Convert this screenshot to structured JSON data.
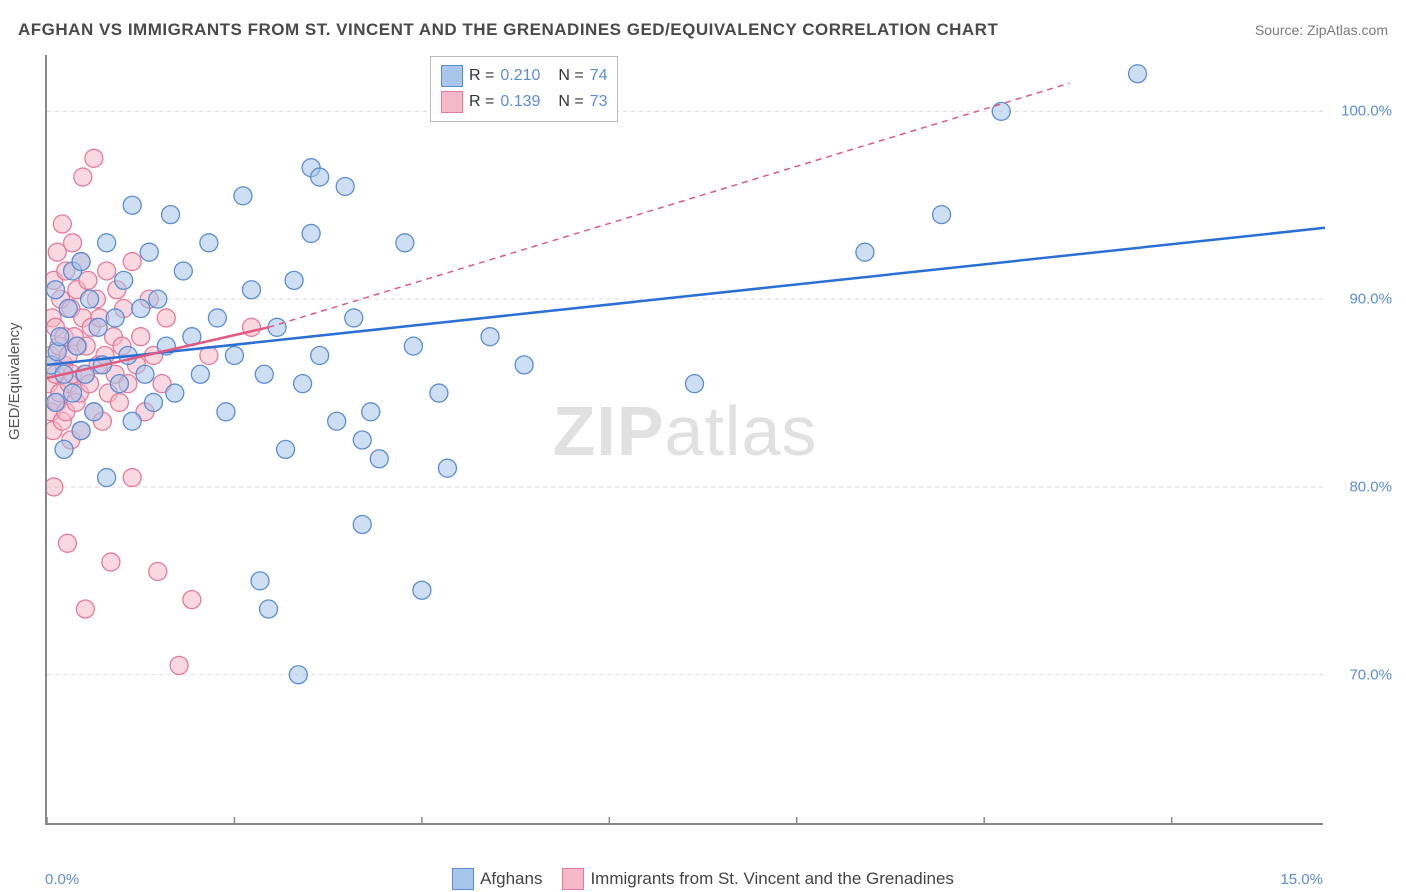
{
  "title": "AFGHAN VS IMMIGRANTS FROM ST. VINCENT AND THE GRENADINES GED/EQUIVALENCY CORRELATION CHART",
  "source": "Source: ZipAtlas.com",
  "ylabel": "GED/Equivalency",
  "watermark_bold": "ZIP",
  "watermark_thin": "atlas",
  "chart": {
    "type": "scatter",
    "xlim": [
      0.0,
      15.0
    ],
    "ylim": [
      62.0,
      103.0
    ],
    "xticks": [
      0.0,
      2.2,
      4.4,
      6.6,
      8.8,
      11.0,
      13.2
    ],
    "xtick_labels_shown": {
      "first": "0.0%",
      "last": "15.0%"
    },
    "yticks": [
      70.0,
      80.0,
      90.0,
      100.0
    ],
    "ytick_labels": [
      "70.0%",
      "80.0%",
      "90.0%",
      "100.0%"
    ],
    "grid_color": "#d9d9d9",
    "axis_color": "#888888",
    "background_color": "#ffffff",
    "tick_label_color": "#5b8dd6",
    "series": {
      "afghans": {
        "label": "Afghans",
        "color_fill": "#a8c5ea",
        "color_stroke": "#5b8dd6",
        "marker_radius": 9,
        "marker_opacity": 0.55,
        "R": "0.210",
        "N": "74",
        "trend": {
          "x1": 0.0,
          "y1": 86.5,
          "x2": 15.0,
          "y2": 93.8,
          "color": "#2a6fd6",
          "width": 2.5,
          "dash": "none",
          "dash_extent": {
            "x2": 15.0,
            "y2": 93.8
          }
        },
        "points": [
          [
            0.05,
            86.5
          ],
          [
            0.1,
            90.5
          ],
          [
            0.1,
            84.5
          ],
          [
            0.12,
            87.2
          ],
          [
            0.15,
            88.0
          ],
          [
            0.2,
            82.0
          ],
          [
            0.2,
            86.0
          ],
          [
            0.25,
            89.5
          ],
          [
            0.3,
            91.5
          ],
          [
            0.3,
            85.0
          ],
          [
            0.35,
            87.5
          ],
          [
            0.4,
            83.0
          ],
          [
            0.4,
            92.0
          ],
          [
            0.45,
            86.0
          ],
          [
            0.5,
            90.0
          ],
          [
            0.55,
            84.0
          ],
          [
            0.6,
            88.5
          ],
          [
            0.65,
            86.5
          ],
          [
            0.7,
            93.0
          ],
          [
            0.7,
            80.5
          ],
          [
            0.8,
            89.0
          ],
          [
            0.85,
            85.5
          ],
          [
            0.9,
            91.0
          ],
          [
            0.95,
            87.0
          ],
          [
            1.0,
            95.0
          ],
          [
            1.0,
            83.5
          ],
          [
            1.1,
            89.5
          ],
          [
            1.15,
            86.0
          ],
          [
            1.2,
            92.5
          ],
          [
            1.25,
            84.5
          ],
          [
            1.3,
            90.0
          ],
          [
            1.4,
            87.5
          ],
          [
            1.45,
            94.5
          ],
          [
            1.5,
            85.0
          ],
          [
            1.6,
            91.5
          ],
          [
            1.7,
            88.0
          ],
          [
            1.8,
            86.0
          ],
          [
            1.9,
            93.0
          ],
          [
            2.0,
            89.0
          ],
          [
            2.1,
            84.0
          ],
          [
            2.2,
            87.0
          ],
          [
            2.3,
            95.5
          ],
          [
            2.4,
            90.5
          ],
          [
            2.5,
            75.0
          ],
          [
            2.55,
            86.0
          ],
          [
            2.6,
            73.5
          ],
          [
            2.7,
            88.5
          ],
          [
            2.8,
            82.0
          ],
          [
            2.9,
            91.0
          ],
          [
            2.95,
            70.0
          ],
          [
            3.0,
            85.5
          ],
          [
            3.1,
            93.5
          ],
          [
            3.2,
            87.0
          ],
          [
            3.1,
            97.0
          ],
          [
            3.4,
            83.5
          ],
          [
            3.2,
            96.5
          ],
          [
            3.5,
            96.0
          ],
          [
            3.6,
            89.0
          ],
          [
            3.7,
            78.0
          ],
          [
            3.7,
            82.5
          ],
          [
            3.8,
            84.0
          ],
          [
            3.9,
            81.5
          ],
          [
            4.2,
            93.0
          ],
          [
            4.3,
            87.5
          ],
          [
            4.4,
            74.5
          ],
          [
            4.6,
            85.0
          ],
          [
            4.7,
            81.0
          ],
          [
            5.2,
            88.0
          ],
          [
            5.6,
            86.5
          ],
          [
            7.6,
            85.5
          ],
          [
            9.6,
            92.5
          ],
          [
            10.5,
            94.5
          ],
          [
            11.2,
            100.0
          ],
          [
            12.8,
            102.0
          ]
        ]
      },
      "svg": {
        "label": "Immigrants from St. Vincent and the Grenadines",
        "color_fill": "#f4b8c8",
        "color_stroke": "#e77a9a",
        "marker_radius": 9,
        "marker_opacity": 0.55,
        "R": "0.139",
        "N": "73",
        "trend": {
          "x1": 0.0,
          "y1": 85.8,
          "x2": 2.6,
          "y2": 88.5,
          "color": "#e05a82",
          "width": 2.5,
          "dash": "none",
          "dash_ext": {
            "x1": 2.6,
            "y1": 88.5,
            "x2": 12.0,
            "y2": 101.5,
            "dash": "6,5"
          }
        },
        "points": [
          [
            0.02,
            85.5
          ],
          [
            0.04,
            87.0
          ],
          [
            0.05,
            84.0
          ],
          [
            0.06,
            89.0
          ],
          [
            0.07,
            83.0
          ],
          [
            0.08,
            91.0
          ],
          [
            0.08,
            80.0
          ],
          [
            0.1,
            86.0
          ],
          [
            0.1,
            88.5
          ],
          [
            0.12,
            84.5
          ],
          [
            0.12,
            92.5
          ],
          [
            0.14,
            87.5
          ],
          [
            0.15,
            85.0
          ],
          [
            0.16,
            90.0
          ],
          [
            0.18,
            83.5
          ],
          [
            0.18,
            94.0
          ],
          [
            0.2,
            86.5
          ],
          [
            0.2,
            88.0
          ],
          [
            0.22,
            84.0
          ],
          [
            0.22,
            91.5
          ],
          [
            0.24,
            77.0
          ],
          [
            0.25,
            87.0
          ],
          [
            0.26,
            85.5
          ],
          [
            0.28,
            89.5
          ],
          [
            0.28,
            82.5
          ],
          [
            0.3,
            93.0
          ],
          [
            0.3,
            86.0
          ],
          [
            0.32,
            88.0
          ],
          [
            0.34,
            84.5
          ],
          [
            0.35,
            90.5
          ],
          [
            0.36,
            87.5
          ],
          [
            0.38,
            85.0
          ],
          [
            0.4,
            92.0
          ],
          [
            0.4,
            83.0
          ],
          [
            0.42,
            96.5
          ],
          [
            0.42,
            89.0
          ],
          [
            0.44,
            86.0
          ],
          [
            0.45,
            73.5
          ],
          [
            0.46,
            87.5
          ],
          [
            0.48,
            91.0
          ],
          [
            0.5,
            85.5
          ],
          [
            0.52,
            88.5
          ],
          [
            0.55,
            84.0
          ],
          [
            0.55,
            97.5
          ],
          [
            0.58,
            90.0
          ],
          [
            0.6,
            86.5
          ],
          [
            0.62,
            89.0
          ],
          [
            0.65,
            83.5
          ],
          [
            0.68,
            87.0
          ],
          [
            0.7,
            91.5
          ],
          [
            0.72,
            85.0
          ],
          [
            0.75,
            76.0
          ],
          [
            0.78,
            88.0
          ],
          [
            0.8,
            86.0
          ],
          [
            0.82,
            90.5
          ],
          [
            0.85,
            84.5
          ],
          [
            0.88,
            87.5
          ],
          [
            0.9,
            89.5
          ],
          [
            0.95,
            85.5
          ],
          [
            1.0,
            92.0
          ],
          [
            1.0,
            80.5
          ],
          [
            1.05,
            86.5
          ],
          [
            1.1,
            88.0
          ],
          [
            1.15,
            84.0
          ],
          [
            1.2,
            90.0
          ],
          [
            1.25,
            87.0
          ],
          [
            1.3,
            75.5
          ],
          [
            1.35,
            85.5
          ],
          [
            1.4,
            89.0
          ],
          [
            1.55,
            70.5
          ],
          [
            1.7,
            74.0
          ],
          [
            1.9,
            87.0
          ],
          [
            2.4,
            88.5
          ]
        ]
      }
    }
  },
  "legend_top": {
    "rows": [
      {
        "swatch_fill": "#a8c5ea",
        "swatch_stroke": "#5b8dd6",
        "R_label": "R =",
        "R": "0.210",
        "N_label": "N =",
        "N": "74"
      },
      {
        "swatch_fill": "#f4b8c8",
        "swatch_stroke": "#e77a9a",
        "R_label": "R =",
        "R": "0.139",
        "N_label": "N =",
        "N": "73"
      }
    ]
  },
  "legend_bottom": {
    "items": [
      {
        "swatch_fill": "#a8c5ea",
        "swatch_stroke": "#5b8dd6",
        "label": "Afghans"
      },
      {
        "swatch_fill": "#f4b8c8",
        "swatch_stroke": "#e77a9a",
        "label": "Immigrants from St. Vincent and the Grenadines"
      }
    ]
  }
}
